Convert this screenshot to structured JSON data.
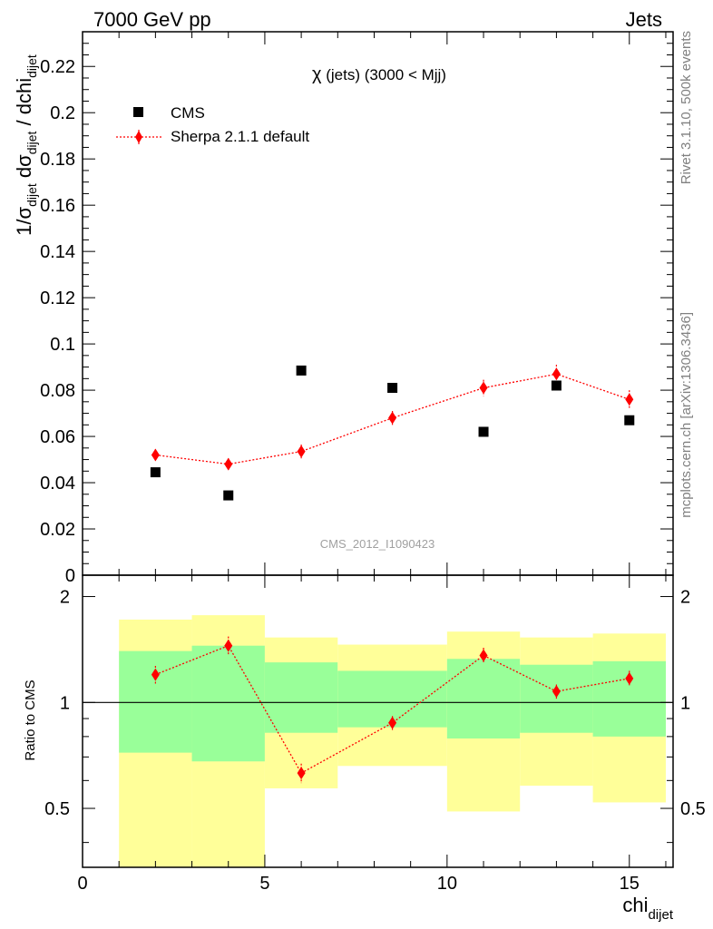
{
  "header": {
    "left": "7000 GeV pp",
    "right": "Jets"
  },
  "side_labels": {
    "rivet": "Rivet 3.1.10,  500k events",
    "mcplots": "mcplots.cern.ch [arXiv:1306.3436]"
  },
  "legend": {
    "data_label": "CMS",
    "mc_label": "Sherpa 2.1.1 default"
  },
  "analysis_id": "CMS_2012_I1090423",
  "colors": {
    "data": "#000000",
    "mc": "#ff0000",
    "band_inner": "#99ff99",
    "band_outer": "#ffff99"
  },
  "chart_data": [
    {
      "type": "scatter",
      "title": "χ (jets) (3000 < Mjj)",
      "title_parts": {
        "symbol": "χ",
        "rest": " (jets) (3000 < Mjj)"
      },
      "ylabel": "1/σ_dijet dσ_dijet / dchi_dijet",
      "ylabel_parts": {
        "a": "1/σ",
        "sub1": "dijet",
        "b": " dσ",
        "sub2": "dijet",
        "c": " / dchi",
        "sub3": "dijet"
      },
      "xlim": [
        0,
        16.2
      ],
      "ylim": [
        0,
        0.235
      ],
      "yticks": [
        0,
        0.02,
        0.04,
        0.06,
        0.08,
        0.1,
        0.12,
        0.14,
        0.16,
        0.18,
        0.2,
        0.22
      ],
      "ytick_labels": [
        "0",
        "0.02",
        "0.04",
        "0.06",
        "0.08",
        "0.1",
        "0.12",
        "0.14",
        "0.16",
        "0.18",
        "0.2",
        "0.22"
      ],
      "series": [
        {
          "name": "CMS",
          "x": [
            2,
            4,
            6,
            8.5,
            11,
            13,
            15
          ],
          "y": [
            0.0445,
            0.0345,
            0.0885,
            0.081,
            0.062,
            0.082,
            0.067
          ]
        },
        {
          "name": "Sherpa 2.1.1 default",
          "x": [
            2,
            4,
            6,
            8.5,
            11,
            13,
            15
          ],
          "y": [
            0.052,
            0.048,
            0.0535,
            0.068,
            0.081,
            0.087,
            0.076
          ],
          "err": [
            0.0025,
            0.0025,
            0.003,
            0.003,
            0.0035,
            0.004,
            0.004
          ]
        }
      ]
    },
    {
      "type": "scatter",
      "ylabel": "Ratio to CMS",
      "xlabel": "chi_dijet",
      "xlabel_parts": {
        "main": "chi",
        "sub": "dijet"
      },
      "xlim": [
        0,
        16.2
      ],
      "ylim": [
        0.34,
        2.3
      ],
      "yscale": "log",
      "xticks": [
        0,
        5,
        10,
        15
      ],
      "xtick_labels": [
        "0",
        "5",
        "10",
        "15"
      ],
      "yticks_labeled": [
        0.5,
        1,
        2
      ],
      "ytick_labels": [
        "0.5",
        "1",
        "2"
      ],
      "bins": [
        {
          "lo": 1,
          "hi": 3,
          "inner": [
            0.72,
            1.4
          ],
          "outer": [
            0.3,
            1.72
          ]
        },
        {
          "lo": 3,
          "hi": 5,
          "inner": [
            0.68,
            1.45
          ],
          "outer": [
            0.3,
            1.77
          ]
        },
        {
          "lo": 5,
          "hi": 7,
          "inner": [
            0.82,
            1.3
          ],
          "outer": [
            0.57,
            1.53
          ]
        },
        {
          "lo": 7,
          "hi": 10,
          "inner": [
            0.85,
            1.23
          ],
          "outer": [
            0.66,
            1.46
          ]
        },
        {
          "lo": 10,
          "hi": 12,
          "inner": [
            0.79,
            1.33
          ],
          "outer": [
            0.49,
            1.59
          ]
        },
        {
          "lo": 12,
          "hi": 14,
          "inner": [
            0.82,
            1.28
          ],
          "outer": [
            0.58,
            1.53
          ]
        },
        {
          "lo": 14,
          "hi": 16,
          "inner": [
            0.8,
            1.31
          ],
          "outer": [
            0.52,
            1.57
          ]
        }
      ],
      "series": [
        {
          "name": "Sherpa 2.1.1 default",
          "x": [
            2,
            4,
            6,
            8.5,
            11,
            13,
            15
          ],
          "y": [
            1.2,
            1.45,
            0.63,
            0.875,
            1.36,
            1.075,
            1.17
          ],
          "err": [
            0.07,
            0.09,
            0.04,
            0.04,
            0.07,
            0.05,
            0.06
          ]
        }
      ]
    }
  ]
}
